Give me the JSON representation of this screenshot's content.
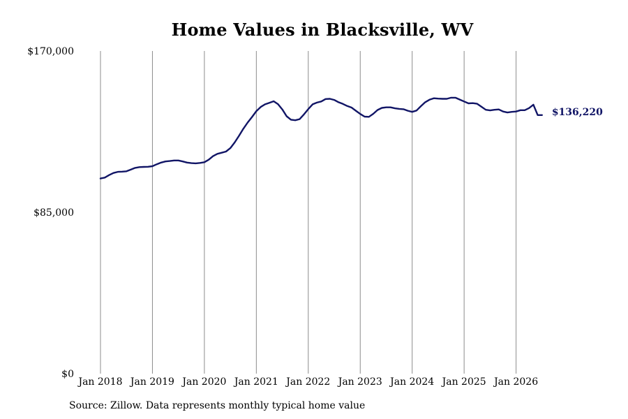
{
  "title": "Home Values in Blacksville, WV",
  "source": "Source: Zillow. Data represents monthly typical home value",
  "colors": {
    "line": "#111566",
    "grid": "#8c8c8c",
    "text": "#000000"
  },
  "chart_data": {
    "type": "line",
    "title": "Home Values in Blacksville, WV",
    "xlabel": "",
    "ylabel": "",
    "x_ticks": [
      "Jan 2018",
      "Jan 2019",
      "Jan 2020",
      "Jan 2021",
      "Jan 2022",
      "Jan 2023",
      "Jan 2024",
      "Jan 2025",
      "Jan 2026"
    ],
    "y_ticks": [
      "$0",
      "$85,000",
      "$170,000"
    ],
    "y_tick_values": [
      0,
      85000,
      170000
    ],
    "ylim": [
      0,
      170000
    ],
    "xlim": [
      "2018-01",
      "2026-07"
    ],
    "grid": "vertical",
    "end_label": "$136,220",
    "series": [
      {
        "x": [
          "2018-01",
          "2018-02",
          "2018-03",
          "2018-04",
          "2018-05",
          "2018-06",
          "2018-07",
          "2018-08",
          "2018-09",
          "2018-10",
          "2018-11",
          "2018-12",
          "2019-01",
          "2019-02",
          "2019-03",
          "2019-04",
          "2019-05",
          "2019-06",
          "2019-07",
          "2019-08",
          "2019-09",
          "2019-10",
          "2019-11",
          "2019-12",
          "2020-01",
          "2020-02",
          "2020-03",
          "2020-04",
          "2020-05",
          "2020-06",
          "2020-07",
          "2020-08",
          "2020-09",
          "2020-10",
          "2020-11",
          "2020-12",
          "2021-01",
          "2021-02",
          "2021-03",
          "2021-04",
          "2021-05",
          "2021-06",
          "2021-07",
          "2021-08",
          "2021-09",
          "2021-10",
          "2021-11",
          "2021-12",
          "2022-01",
          "2022-02",
          "2022-03",
          "2022-04",
          "2022-05",
          "2022-06",
          "2022-07",
          "2022-08",
          "2022-09",
          "2022-10",
          "2022-11",
          "2022-12",
          "2023-01",
          "2023-02",
          "2023-03",
          "2023-04",
          "2023-05",
          "2023-06",
          "2023-07",
          "2023-08",
          "2023-09",
          "2023-10",
          "2023-11",
          "2023-12",
          "2024-01",
          "2024-02",
          "2024-03",
          "2024-04",
          "2024-05",
          "2024-06",
          "2024-07",
          "2024-08",
          "2024-09",
          "2024-10",
          "2024-11",
          "2024-12",
          "2025-01",
          "2025-02",
          "2025-03",
          "2025-04",
          "2025-05",
          "2025-06",
          "2025-07",
          "2025-08",
          "2025-09",
          "2025-10",
          "2025-11",
          "2025-12",
          "2026-01",
          "2026-02",
          "2026-03",
          "2026-04",
          "2026-05",
          "2026-06",
          "2026-07"
        ],
        "y": [
          102800,
          103300,
          104600,
          105700,
          106300,
          106400,
          106600,
          107500,
          108400,
          108800,
          108900,
          109000,
          109300,
          110300,
          111200,
          111800,
          112000,
          112300,
          112300,
          111800,
          111200,
          110900,
          110800,
          111000,
          111400,
          112700,
          114600,
          115800,
          116400,
          117000,
          118800,
          121800,
          125300,
          129000,
          132300,
          135200,
          138300,
          140500,
          141900,
          142700,
          143500,
          142000,
          139200,
          135600,
          133800,
          133500,
          134100,
          136600,
          139400,
          141900,
          142800,
          143400,
          144700,
          144800,
          144200,
          143000,
          142100,
          141000,
          140200,
          138500,
          136800,
          135400,
          135300,
          136900,
          138900,
          140000,
          140300,
          140300,
          139800,
          139500,
          139300,
          138500,
          137900,
          138600,
          140900,
          143000,
          144300,
          145100,
          144900,
          144800,
          144800,
          145400,
          145400,
          144400,
          143400,
          142400,
          142500,
          142200,
          140600,
          139000,
          138700,
          139000,
          139200,
          138100,
          137600,
          137900,
          138100,
          138800,
          138800,
          139900,
          141700,
          136220,
          136220
        ]
      }
    ]
  }
}
